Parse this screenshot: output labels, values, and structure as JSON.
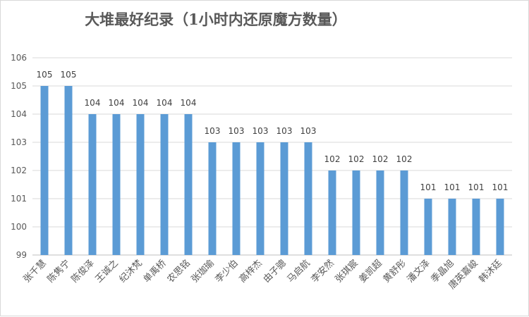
{
  "chart_data": {
    "type": "bar",
    "title": "大堆最好纪录（1小时内还原魔方数量）",
    "xlabel": "",
    "ylabel": "",
    "categories": [
      "张千慧",
      "陈隽宁",
      "陈俊泽",
      "王诚之",
      "纪沐梵",
      "单禹桥",
      "农思铭",
      "张珈瑜",
      "李少伯",
      "高梓杰",
      "由子骢",
      "马启航",
      "李安然",
      "张琪宸",
      "姜凯超",
      "黄舒彤",
      "潘文泽",
      "季晶旭",
      "唐英嘉峻",
      "韩沐廷"
    ],
    "values": [
      105,
      105,
      104,
      104,
      104,
      104,
      104,
      103,
      103,
      103,
      103,
      103,
      102,
      102,
      102,
      102,
      101,
      101,
      101,
      101
    ],
    "ylim": [
      99,
      106
    ],
    "yticks": [
      99,
      100,
      101,
      102,
      103,
      104,
      105,
      106
    ],
    "grid": true,
    "legend": "none",
    "data_labels": true,
    "bar_color": "#5b9bd5"
  }
}
